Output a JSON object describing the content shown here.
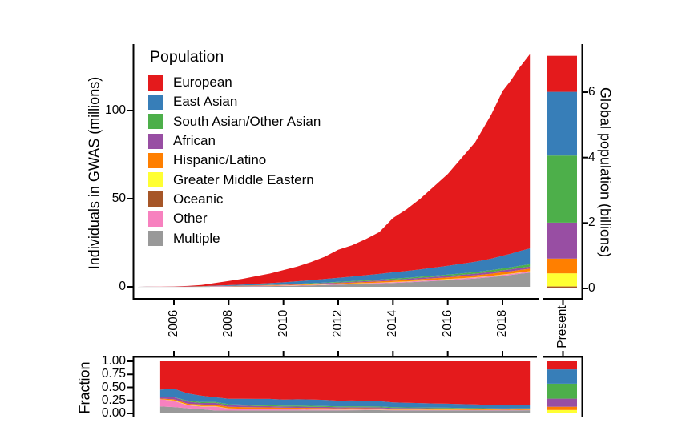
{
  "legend": {
    "title": "Population"
  },
  "chart_data": [
    {
      "id": "individuals",
      "type": "area",
      "stacked": true,
      "stack_order": "reverse of listed (Multiple at bottom, European on top)",
      "ylabel": "Individuals in GWAS (millions)",
      "yticks": [
        0,
        50,
        100
      ],
      "ylim": [
        0,
        137
      ],
      "xticks": [
        "2006",
        "2008",
        "2010",
        "2012",
        "2014",
        "2016",
        "2018"
      ],
      "xlim": [
        2004.5,
        2019.2
      ],
      "grid": false,
      "legend_position": "top-left inside plot",
      "x": [
        2004.7,
        2005,
        2005.5,
        2006,
        2006.5,
        2007,
        2007.5,
        2008,
        2008.5,
        2009,
        2009.5,
        2010,
        2010.5,
        2011,
        2011.5,
        2012,
        2012.5,
        2013,
        2013.5,
        2014,
        2014.5,
        2015,
        2015.5,
        2016,
        2016.5,
        2017,
        2017.3,
        2017.6,
        2018,
        2018.3,
        2018.6,
        2019
      ],
      "series": [
        {
          "name": "European",
          "color": "#E41A1C",
          "values": [
            0.01,
            0.04,
            0.08,
            0.13,
            0.31,
            0.66,
            1.51,
            2.37,
            3.24,
            4.33,
            5.41,
            6.97,
            8.38,
            10.26,
            12.58,
            15.88,
            17.68,
            20.43,
            23.69,
            30.79,
            34.99,
            40.08,
            46.08,
            52.06,
            59.94,
            67.8,
            74.97,
            82.0,
            93.39,
            98.21,
            103.8,
            110.25
          ]
        },
        {
          "name": "East Asian",
          "color": "#377EB8",
          "values": [
            0,
            0.01,
            0.02,
            0.04,
            0.07,
            0.12,
            0.2,
            0.35,
            0.5,
            0.7,
            0.9,
            1.1,
            1.4,
            1.7,
            2.0,
            2.3,
            2.6,
            2.9,
            3.2,
            3.6,
            3.9,
            4.2,
            4.6,
            5.0,
            5.4,
            5.8,
            6.1,
            6.5,
            7.2,
            7.7,
            8.3,
            9.0
          ]
        },
        {
          "name": "South Asian/Other Asian",
          "color": "#4DAF4A",
          "values": [
            0,
            0,
            0,
            0,
            0.01,
            0.02,
            0.04,
            0.06,
            0.09,
            0.12,
            0.15,
            0.18,
            0.22,
            0.26,
            0.3,
            0.35,
            0.4,
            0.45,
            0.5,
            0.55,
            0.6,
            0.65,
            0.7,
            0.78,
            0.85,
            0.92,
            0.97,
            1.02,
            1.1,
            1.17,
            1.23,
            1.3
          ]
        },
        {
          "name": "African",
          "color": "#984EA3",
          "values": [
            0,
            0,
            0.005,
            0.01,
            0.02,
            0.03,
            0.08,
            0.1,
            0.12,
            0.15,
            0.18,
            0.22,
            0.26,
            0.3,
            0.35,
            0.4,
            0.45,
            0.5,
            0.55,
            0.6,
            0.65,
            0.7,
            0.75,
            0.8,
            0.85,
            0.9,
            0.95,
            1.0,
            1.05,
            1.1,
            1.15,
            1.2
          ]
        },
        {
          "name": "Hispanic/Latino",
          "color": "#FF7F00",
          "values": [
            0,
            0,
            0.002,
            0.005,
            0.01,
            0.03,
            0.06,
            0.1,
            0.14,
            0.18,
            0.22,
            0.26,
            0.3,
            0.35,
            0.4,
            0.46,
            0.52,
            0.58,
            0.64,
            0.7,
            0.76,
            0.83,
            0.9,
            0.97,
            1.04,
            1.1,
            1.15,
            1.2,
            1.26,
            1.3,
            1.35,
            1.4
          ]
        },
        {
          "name": "Greater Middle Eastern",
          "color": "#FFFF33",
          "values": [
            0,
            0,
            0,
            0.002,
            0.004,
            0.008,
            0.012,
            0.016,
            0.02,
            0.03,
            0.04,
            0.05,
            0.06,
            0.07,
            0.08,
            0.09,
            0.1,
            0.11,
            0.12,
            0.13,
            0.14,
            0.15,
            0.155,
            0.16,
            0.165,
            0.17,
            0.175,
            0.18,
            0.185,
            0.19,
            0.195,
            0.2
          ]
        },
        {
          "name": "Oceanic",
          "color": "#A65628",
          "values": [
            0,
            0,
            0,
            0,
            0,
            0.002,
            0.004,
            0.006,
            0.008,
            0.01,
            0.012,
            0.015,
            0.018,
            0.02,
            0.022,
            0.025,
            0.028,
            0.03,
            0.032,
            0.035,
            0.037,
            0.04,
            0.041,
            0.042,
            0.044,
            0.045,
            0.046,
            0.047,
            0.048,
            0.049,
            0.05,
            0.05
          ]
        },
        {
          "name": "Other",
          "color": "#F781BF",
          "values": [
            0.003,
            0.01,
            0.02,
            0.03,
            0.03,
            0.05,
            0.17,
            0.12,
            0.13,
            0.15,
            0.17,
            0.19,
            0.21,
            0.24,
            0.27,
            0.3,
            0.32,
            0.35,
            0.37,
            0.4,
            0.42,
            0.45,
            0.47,
            0.49,
            0.51,
            0.53,
            0.54,
            0.55,
            0.57,
            0.58,
            0.59,
            0.6
          ]
        },
        {
          "name": "Multiple",
          "color": "#999999",
          "values": [
            0.005,
            0.01,
            0.02,
            0.03,
            0.05,
            0.08,
            0.12,
            0.18,
            0.25,
            0.33,
            0.42,
            0.52,
            0.65,
            0.8,
            1.0,
            1.2,
            1.4,
            1.65,
            1.9,
            2.2,
            2.5,
            2.9,
            3.3,
            3.7,
            4.2,
            4.7,
            5.1,
            5.5,
            6.2,
            6.7,
            7.3,
            8.0
          ]
        }
      ]
    },
    {
      "id": "fraction",
      "type": "area",
      "stacked": true,
      "normalized": true,
      "source": "individuals",
      "note": "same series as the individuals chart, normalized to sum to 1 at each x",
      "ylabel": "Fraction",
      "yticks": [
        "0.00",
        "0.25",
        "0.50",
        "0.75",
        "1.00"
      ],
      "ylim": [
        0,
        1
      ]
    },
    {
      "id": "global_population",
      "type": "bar",
      "stacked": true,
      "categories": [
        "Present"
      ],
      "ylabel": "Global population (billions)",
      "yticks": [
        0,
        2,
        4,
        6
      ],
      "ylim": [
        0,
        7.4
      ],
      "total": 7.11,
      "segments": [
        {
          "name": "European",
          "color": "#E41A1C",
          "value": 1.1
        },
        {
          "name": "East Asian",
          "color": "#377EB8",
          "value": 1.95
        },
        {
          "name": "South Asian/Other Asian",
          "color": "#4DAF4A",
          "value": 2.05
        },
        {
          "name": "African",
          "color": "#984EA3",
          "value": 1.1
        },
        {
          "name": "Hispanic/Latino",
          "color": "#FF7F00",
          "value": 0.45
        },
        {
          "name": "Greater Middle Eastern",
          "color": "#FFFF33",
          "value": 0.4
        },
        {
          "name": "Oceanic",
          "color": "#A65628",
          "value": 0.04
        },
        {
          "name": "Other",
          "color": "#F781BF",
          "value": 0.02
        },
        {
          "name": "Multiple",
          "color": "#999999",
          "value": 0
        }
      ]
    },
    {
      "id": "global_population_fraction",
      "type": "bar",
      "stacked": true,
      "normalized": true,
      "source": "global_population",
      "categories": [
        "Present"
      ],
      "ylim": [
        0,
        1
      ]
    }
  ]
}
